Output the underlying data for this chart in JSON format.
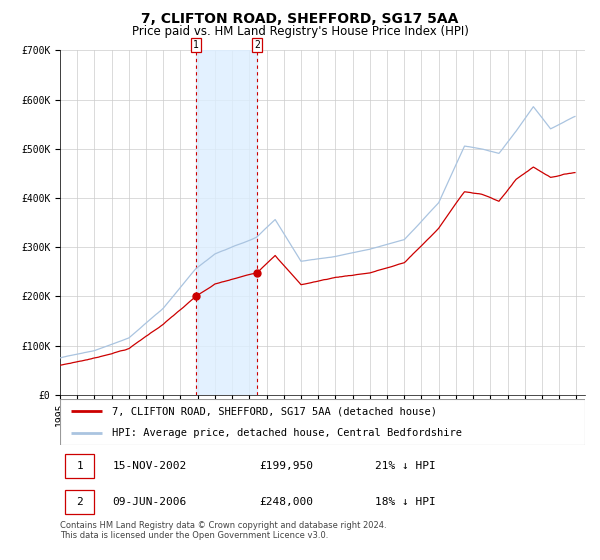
{
  "title": "7, CLIFTON ROAD, SHEFFORD, SG17 5AA",
  "subtitle": "Price paid vs. HM Land Registry's House Price Index (HPI)",
  "legend_line1": "7, CLIFTON ROAD, SHEFFORD, SG17 5AA (detached house)",
  "legend_line2": "HPI: Average price, detached house, Central Bedfordshire",
  "sale1_date": "15-NOV-2002",
  "sale1_price": 199950,
  "sale1_pct": "21%",
  "sale2_date": "09-JUN-2006",
  "sale2_price": 248000,
  "sale2_pct": "18%",
  "footer": "Contains HM Land Registry data © Crown copyright and database right 2024.\nThis data is licensed under the Open Government Licence v3.0.",
  "hpi_color": "#aac4e0",
  "price_color": "#cc0000",
  "marker_color": "#cc0000",
  "background_color": "#ffffff",
  "grid_color": "#cccccc",
  "shade_color": "#ddeeff",
  "dashed_line_color": "#cc0000",
  "ylim": [
    0,
    700000
  ],
  "xlim_start": 1995.0,
  "xlim_end": 2025.5,
  "sale1_x": 2002.88,
  "sale2_x": 2006.44,
  "title_fontsize": 10,
  "subtitle_fontsize": 8.5,
  "tick_fontsize": 7,
  "legend_fontsize": 7.5,
  "footer_fontsize": 6
}
